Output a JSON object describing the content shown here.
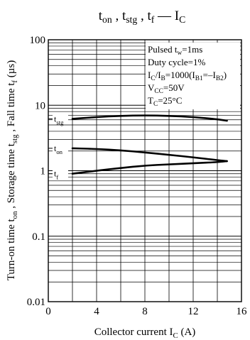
{
  "chart_data": {
    "type": "line",
    "title": {
      "parts": [
        {
          "t": "t",
          "sub": "on"
        },
        {
          "t": " , t",
          "sub": "stg"
        },
        {
          "t": " , t",
          "sub": "f"
        },
        {
          "t": " — I",
          "sub": "C"
        }
      ]
    },
    "xlabel": {
      "text": "Collector current  I",
      "sub": "C",
      "suffix": "  (A)"
    },
    "ylabel": {
      "parts": [
        {
          "t": "Turn-on time t",
          "sub": "on"
        },
        {
          "t": " , Storage time t",
          "sub": "stg"
        },
        {
          "t": " , Fall time t",
          "sub": "f"
        },
        {
          "t": "  (µs)"
        }
      ]
    },
    "x_scale": "linear",
    "y_scale": "log",
    "xlim": [
      0,
      16
    ],
    "ylim": [
      0.01,
      100
    ],
    "x_ticks": [
      0,
      4,
      8,
      12,
      16
    ],
    "x_tick_labels": [
      "0",
      "4",
      "8",
      "12",
      "16"
    ],
    "y_ticks": [
      0.01,
      0.1,
      1,
      10,
      100
    ],
    "y_tick_labels": [
      "0.01",
      "0.1",
      "1",
      "10",
      "100"
    ],
    "grid": true,
    "legend_box": {
      "position": "top-right",
      "lines": [
        {
          "parts": [
            {
              "t": "Pulsed t"
            },
            {
              "t": "w",
              "sub": true
            },
            {
              "t": "=1ms"
            }
          ]
        },
        {
          "parts": [
            {
              "t": "Duty cycle=1%"
            }
          ]
        },
        {
          "parts": [
            {
              "t": "I"
            },
            {
              "t": "C",
              "sub": true
            },
            {
              "t": "/I"
            },
            {
              "t": "B",
              "sub": true
            },
            {
              "t": "=1000(I"
            },
            {
              "t": "B1",
              "sub": true
            },
            {
              "t": "=–I"
            },
            {
              "t": "B2",
              "sub": true
            },
            {
              "t": ")"
            }
          ]
        },
        {
          "parts": [
            {
              "t": "V"
            },
            {
              "t": "CC",
              "sub": true
            },
            {
              "t": "=50V"
            }
          ]
        },
        {
          "parts": [
            {
              "t": "T"
            },
            {
              "t": "C",
              "sub": true
            },
            {
              "t": "=25°C"
            }
          ]
        }
      ]
    },
    "series": [
      {
        "name": "tstg",
        "label": {
          "t": "t",
          "sub": "stg"
        },
        "x": [
          2,
          4,
          6,
          8,
          10,
          12,
          14,
          14.8
        ],
        "y": [
          6.2,
          6.6,
          6.9,
          7.0,
          6.9,
          6.6,
          6.1,
          5.8
        ]
      },
      {
        "name": "ton",
        "label": {
          "t": "t",
          "sub": "on"
        },
        "x": [
          2,
          4,
          6,
          8,
          10,
          12,
          14,
          14.8
        ],
        "y": [
          2.2,
          2.15,
          2.05,
          1.9,
          1.75,
          1.6,
          1.45,
          1.4
        ]
      },
      {
        "name": "tf",
        "label": {
          "t": "t",
          "sub": "f"
        },
        "x": [
          2,
          4,
          6,
          8,
          10,
          12,
          14,
          14.8
        ],
        "y": [
          0.9,
          1.0,
          1.1,
          1.2,
          1.25,
          1.3,
          1.35,
          1.4
        ]
      }
    ]
  }
}
